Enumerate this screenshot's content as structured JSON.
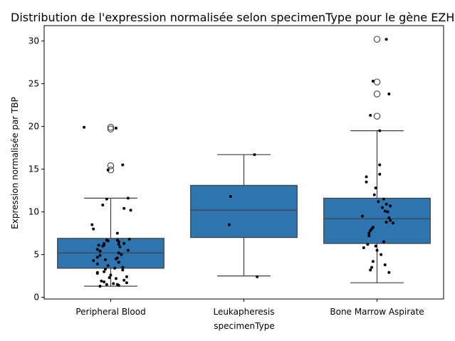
{
  "chart_data": {
    "type": "box",
    "title": "Distribution de l'expression normalisée selon specimenType pour le gène EZH2",
    "xlabel": "specimenType",
    "ylabel": "Expression normalisée par TBP",
    "ylim": [
      -0.2,
      31.8
    ],
    "yticks": [
      0,
      5,
      10,
      15,
      20,
      25,
      30
    ],
    "grid": false,
    "box_color": "#2e75b0",
    "categories": [
      "Peripheral Blood",
      "Leukapheresis",
      "Bone Marrow Aspirate"
    ],
    "boxes": [
      {
        "category": "Peripheral Blood",
        "whisker_low": 1.3,
        "q1": 3.4,
        "median": 5.2,
        "q3": 6.9,
        "whisker_high": 11.6,
        "outliers": [
          19.7,
          19.9,
          15.4,
          14.9
        ]
      },
      {
        "category": "Leukapheresis",
        "whisker_low": 2.5,
        "q1": 7.0,
        "median": 10.2,
        "q3": 13.1,
        "whisker_high": 16.7,
        "outliers": []
      },
      {
        "category": "Bone Marrow Aspirate",
        "whisker_low": 1.7,
        "q1": 6.3,
        "median": 9.2,
        "q3": 11.6,
        "whisker_high": 19.5,
        "outliers": [
          30.2,
          25.2,
          23.8,
          21.2
        ]
      }
    ],
    "points": [
      {
        "category": "Peripheral Blood",
        "x_offset": [
          -0.2,
          0.04,
          0.09,
          -0.02,
          0.13,
          -0.03,
          0.1,
          -0.06,
          0.15,
          0.05,
          -0.13,
          -0.14,
          0.14,
          -0.03,
          0.05,
          -0.02,
          0.06,
          -0.05,
          0.1,
          -0.05,
          -0.06,
          0.06,
          0.07,
          -0.1,
          0.13,
          -0.08,
          0.06,
          0.08,
          -0.08,
          -0.1,
          0.05,
          0.04,
          -0.04,
          -0.13,
          0.06,
          -0.1,
          -0.02,
          0.09,
          0.03,
          -0.04,
          0.09,
          -0.05,
          -0.1,
          -0.1,
          0.0,
          0.12,
          -0.01,
          0.04,
          0.1,
          -0.07,
          -0.05,
          0.12,
          0.02,
          -0.03,
          0.06,
          -0.08,
          0.05,
          -0.09
        ],
        "y": [
          19.9,
          19.8,
          15.5,
          14.9,
          11.6,
          11.5,
          10.4,
          10.8,
          10.2,
          7.5,
          8.0,
          8.5,
          6.8,
          6.7,
          6.7,
          6.6,
          6.5,
          6.3,
          6.3,
          6.1,
          6.0,
          6.2,
          5.9,
          5.6,
          5.5,
          5.4,
          5.2,
          5.0,
          4.9,
          4.7,
          4.6,
          4.5,
          4.4,
          4.3,
          4.1,
          3.9,
          3.7,
          3.5,
          3.4,
          3.3,
          3.2,
          3.0,
          2.9,
          2.8,
          2.6,
          2.4,
          2.3,
          2.2,
          2.0,
          1.9,
          1.8,
          1.7,
          1.6,
          1.5,
          1.4,
          1.3,
          1.5,
          6.1
        ]
      },
      {
        "category": "Leukapheresis",
        "x_offset": [
          0.08,
          -0.1,
          -0.11,
          0.1
        ],
        "y": [
          16.7,
          11.8,
          8.5,
          2.4
        ]
      },
      {
        "category": "Bone Marrow Aspirate",
        "x_offset": [
          0.07,
          -0.03,
          0.09,
          -0.05,
          0.02,
          0.02,
          0.02,
          -0.08,
          -0.08,
          -0.01,
          -0.02,
          0.05,
          0.01,
          0.07,
          0.1,
          0.04,
          0.06,
          0.08,
          -0.11,
          0.09,
          0.1,
          0.07,
          0.12,
          -0.03,
          -0.04,
          -0.05,
          -0.06,
          -0.06,
          0.05,
          -0.07,
          -0.01,
          -0.1,
          0.0,
          0.03,
          -0.03,
          0.06,
          -0.04,
          -0.05,
          0.09
        ],
        "y": [
          30.2,
          25.3,
          23.8,
          21.3,
          19.5,
          15.5,
          14.4,
          14.1,
          13.5,
          12.8,
          12.0,
          11.5,
          11.2,
          10.9,
          10.7,
          10.5,
          10.1,
          10.0,
          9.5,
          9.3,
          9.0,
          8.8,
          8.7,
          8.2,
          8.0,
          7.8,
          7.5,
          7.2,
          6.5,
          6.2,
          6.0,
          5.8,
          5.5,
          5.0,
          4.2,
          3.8,
          3.5,
          3.2,
          2.9
        ]
      }
    ]
  }
}
